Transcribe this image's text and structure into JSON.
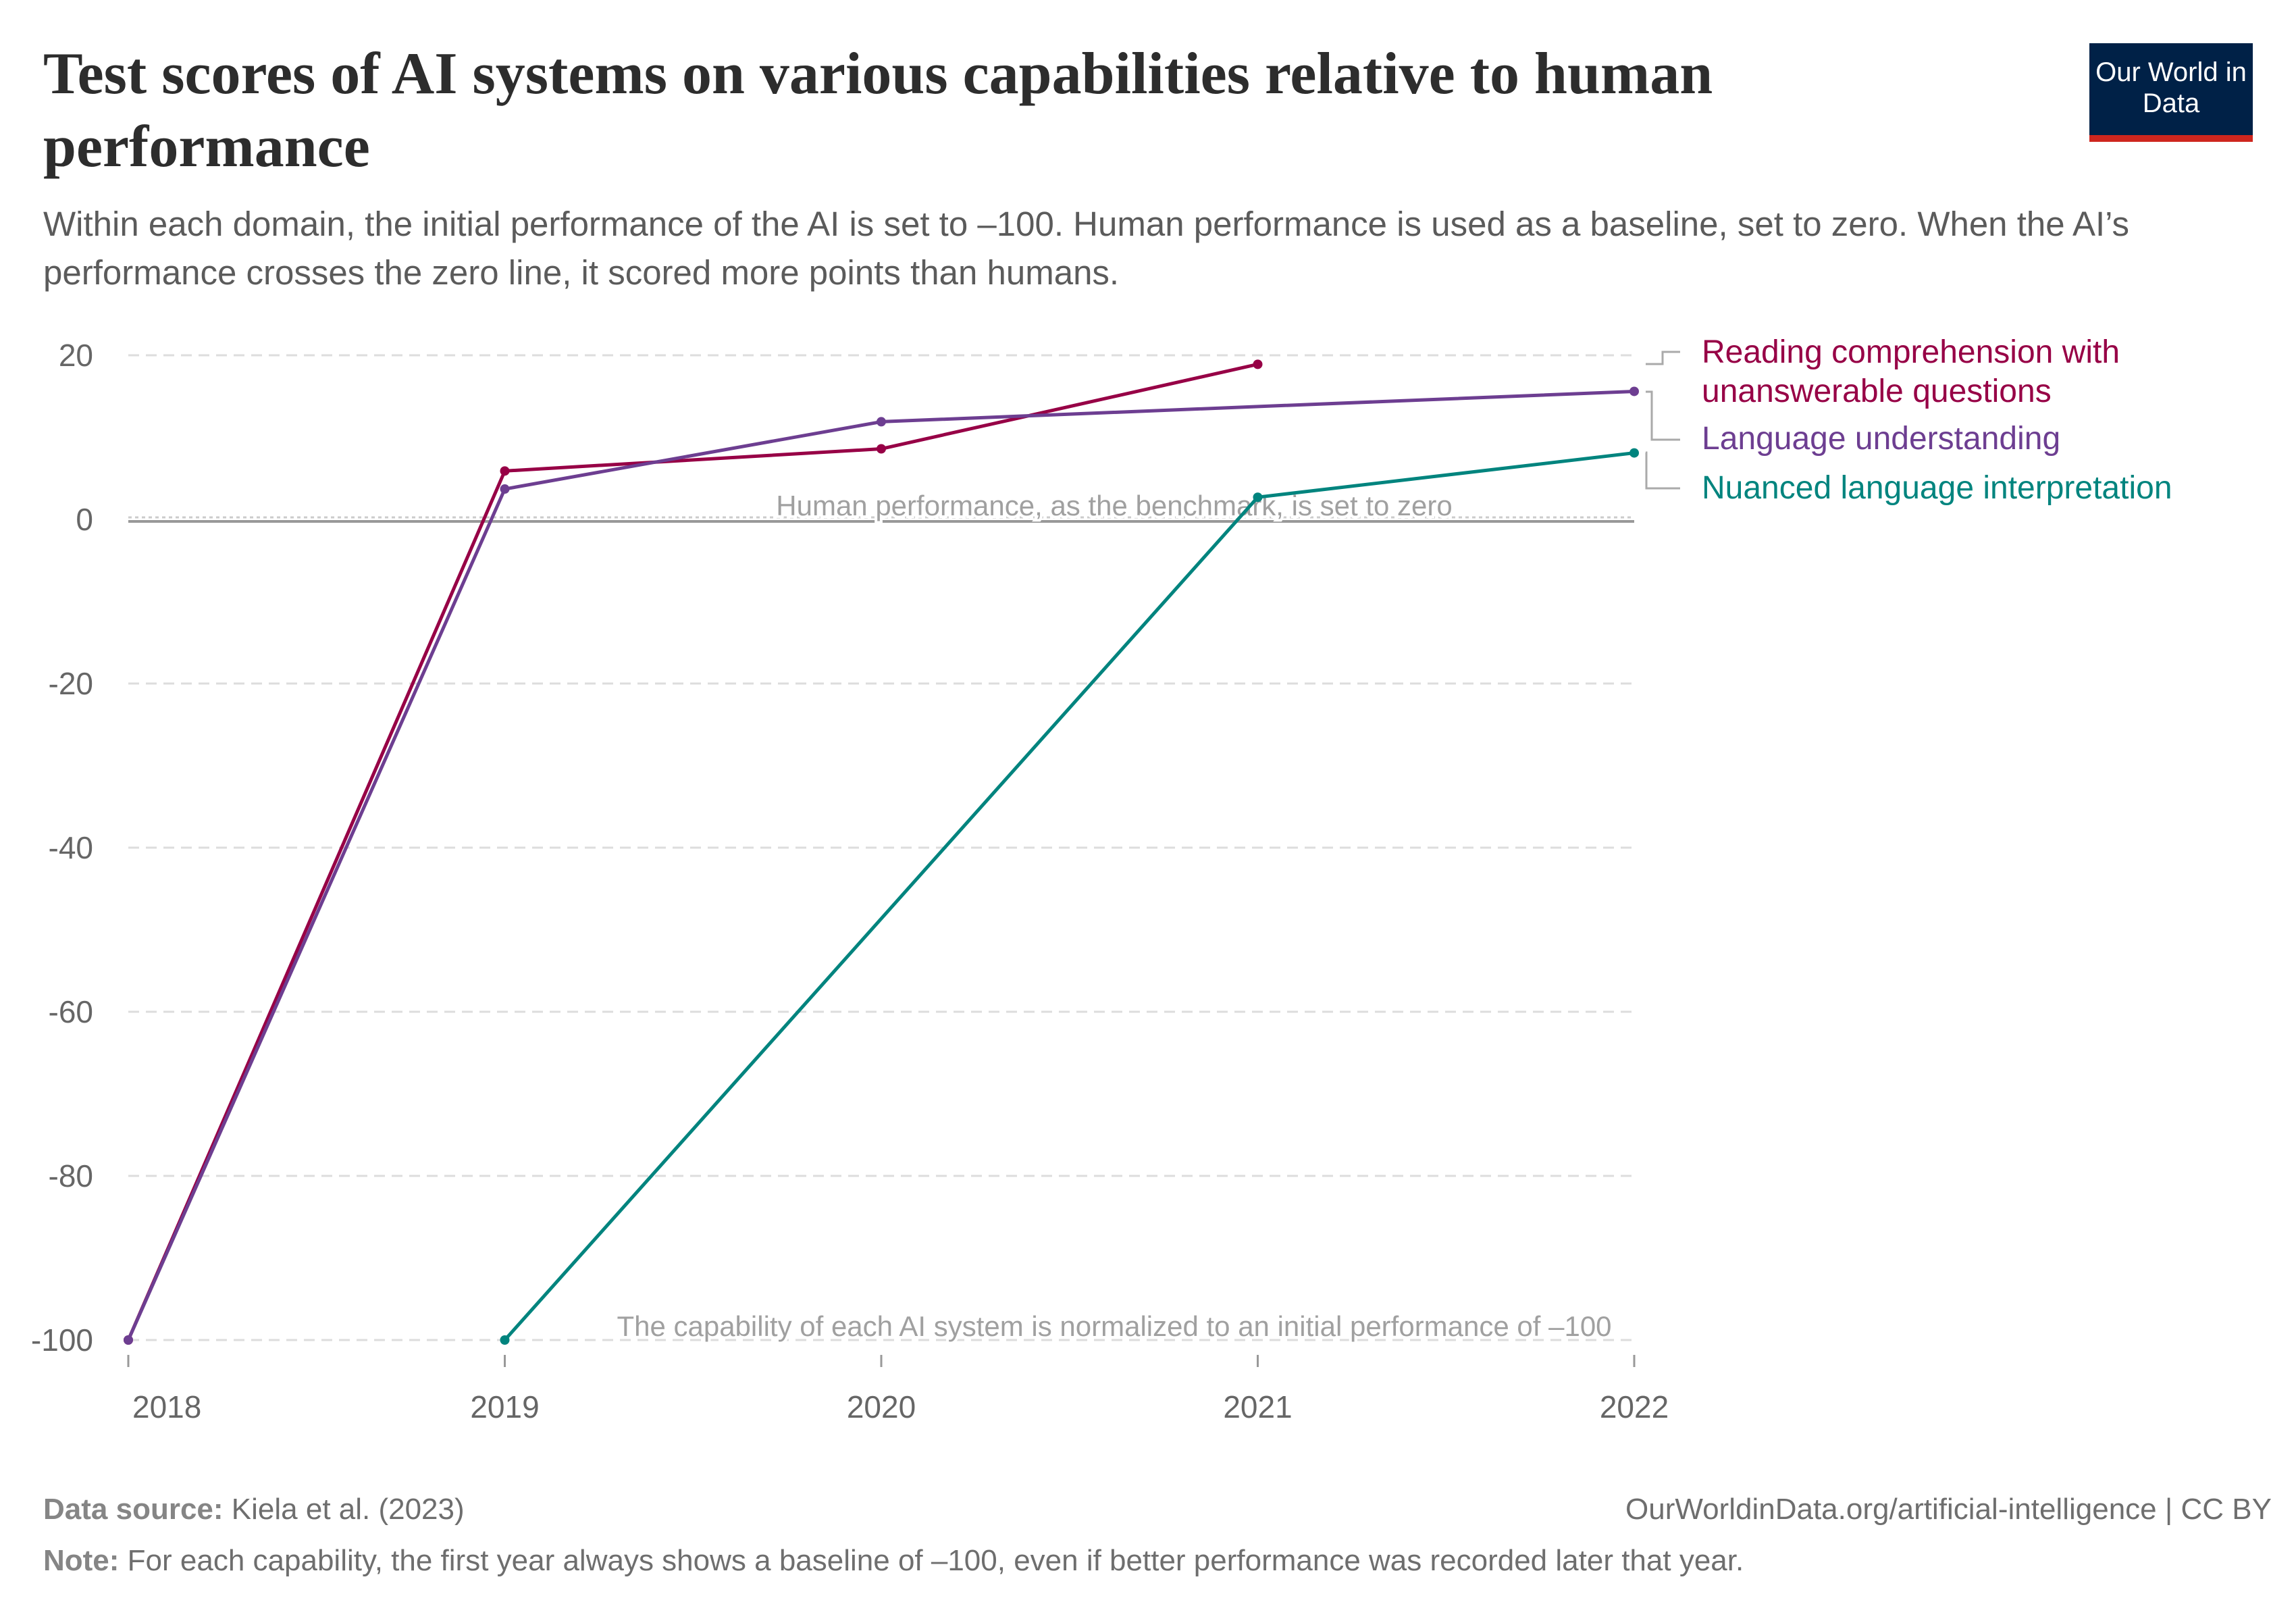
{
  "header": {
    "title": "Test scores of AI systems on various capabilities relative to human performance",
    "subtitle": "Within each domain, the initial performance of the AI is set to –100. Human performance is used as a baseline, set to zero. When the AI’s performance crosses the zero line, it scored more points than humans.",
    "logo_text": "Our World in Data"
  },
  "chart_data": {
    "type": "line",
    "title": "Test scores of AI systems on various capabilities relative to human performance",
    "xlabel": "",
    "ylabel": "",
    "x_ticks": [
      "2018",
      "2019",
      "2020",
      "2021",
      "2022"
    ],
    "y_ticks": [
      "20",
      "0",
      "-20",
      "-40",
      "-60",
      "-80",
      "-100"
    ],
    "xlim": [
      2018,
      2022
    ],
    "ylim": [
      -100,
      20
    ],
    "grid": "horizontal dashed",
    "legend": "right (end-of-line labels)",
    "series": [
      {
        "name": "Reading comprehension with unanswerable questions",
        "color": "#970046",
        "x": [
          2018,
          2019,
          2020,
          2021
        ],
        "y": [
          -100,
          5.9,
          8.6,
          18.9
        ]
      },
      {
        "name": "Language understanding",
        "color": "#6d3e91",
        "x": [
          2018,
          2019,
          2020,
          2022
        ],
        "y": [
          -100,
          3.7,
          11.9,
          15.6
        ]
      },
      {
        "name": "Nuanced language interpretation",
        "color": "#00847e",
        "x": [
          2019,
          2021,
          2022
        ],
        "y": [
          -100,
          2.7,
          8.1
        ]
      }
    ],
    "annotations": [
      {
        "text": "Human performance, as the benchmark, is set to zero",
        "y": 0
      },
      {
        "text": "The capability of each AI system is normalized to an initial performance of –100",
        "y": -100
      }
    ]
  },
  "footer": {
    "source_label": "Data source:",
    "source_value": "Kiela et al. (2023)",
    "url": "OurWorldinData.org/artificial-intelligence",
    "license": "| CC BY",
    "note_label": "Note:",
    "note_value": "For each capability, the first year always shows a baseline of –100, even if better performance was recorded later that year."
  }
}
